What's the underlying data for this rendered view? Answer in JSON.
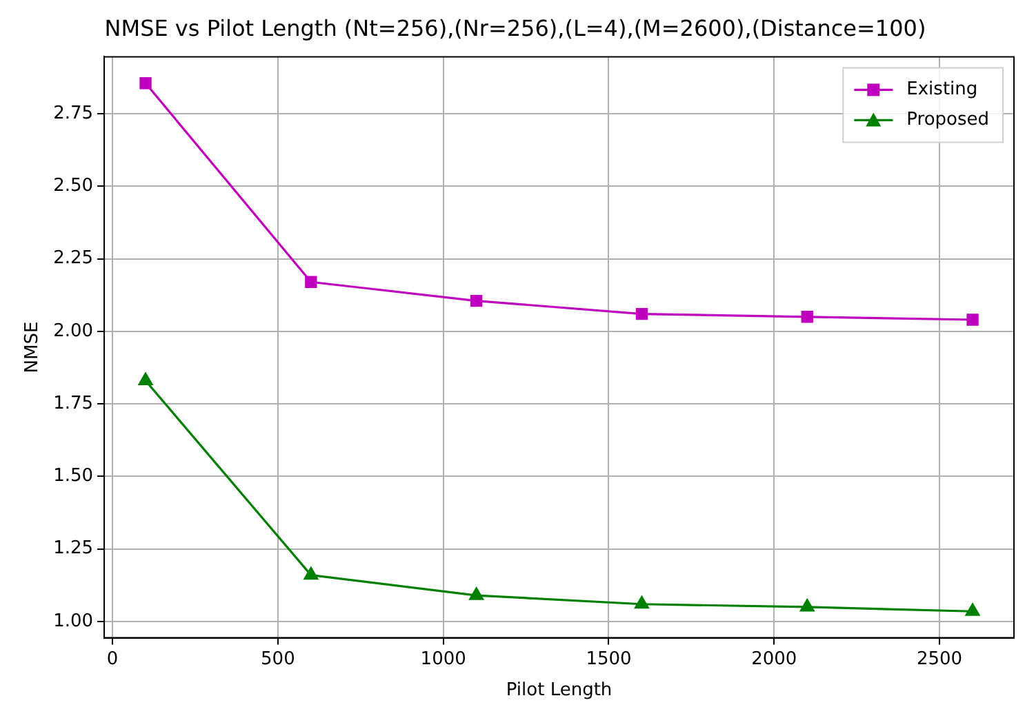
{
  "chart_data": {
    "type": "line",
    "title": "NMSE vs Pilot Length (Nt=256),(Nr=256),(L=4),(M=2600),(Distance=100)",
    "xlabel": "Pilot Length",
    "ylabel": "NMSE",
    "x": [
      100,
      600,
      1100,
      1600,
      2100,
      2600
    ],
    "series": [
      {
        "name": "Existing",
        "color": "#bf00bf",
        "marker": "square",
        "values": [
          2.855,
          2.17,
          2.105,
          2.06,
          2.05,
          2.04
        ]
      },
      {
        "name": "Proposed",
        "color": "#008000",
        "marker": "triangle",
        "values": [
          1.83,
          1.16,
          1.09,
          1.06,
          1.05,
          1.035
        ]
      }
    ],
    "xlim": [
      -25,
      2725
    ],
    "xticks": [
      0,
      500,
      1000,
      1500,
      2000,
      2500
    ],
    "ylim": [
      0.944,
      2.946
    ],
    "yticks": [
      {
        "value": 1.0,
        "label": "1.00"
      },
      1.25,
      {
        "value": 1.5,
        "label": "1.50"
      },
      1.75,
      {
        "value": 2.0,
        "label": "2.00"
      },
      2.25,
      {
        "value": 2.5,
        "label": "2.50"
      },
      2.75
    ],
    "grid": true,
    "legend": "top right",
    "line_style": "solid"
  }
}
